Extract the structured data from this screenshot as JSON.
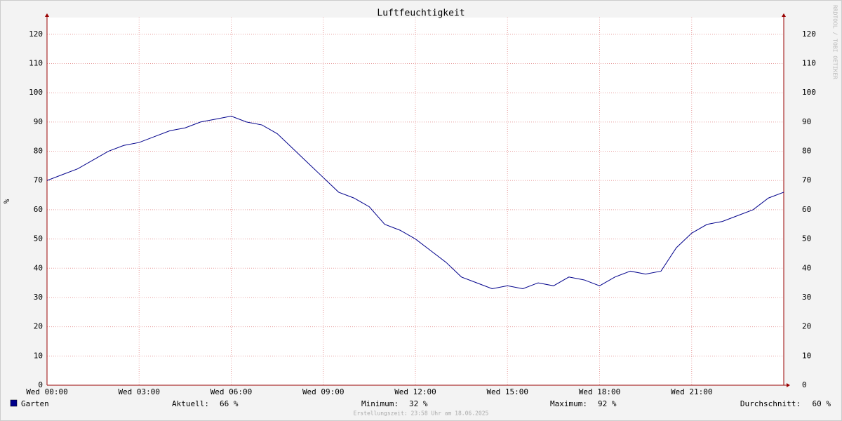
{
  "chart_data": {
    "type": "line",
    "title": "Luftfeuchtigkeit",
    "y_label": "%",
    "watermark": "RRDTOOL / TOBI OETIKER",
    "x": [
      0,
      0.5,
      1,
      1.5,
      2,
      2.5,
      3,
      3.5,
      4,
      4.5,
      5,
      5.5,
      6,
      6.5,
      7,
      7.5,
      8,
      8.5,
      9,
      9.5,
      10,
      10.5,
      11,
      11.5,
      12,
      12.5,
      13,
      13.5,
      14,
      14.5,
      15,
      15.5,
      16,
      16.5,
      17,
      17.5,
      18,
      18.5,
      19,
      19.5,
      20,
      20.5,
      21,
      21.5,
      22,
      22.5,
      23,
      23.5,
      24
    ],
    "series": [
      {
        "name": "Garten",
        "color": "#00008b",
        "values": [
          70,
          72,
          74,
          77,
          80,
          82,
          83,
          85,
          87,
          88,
          90,
          91,
          92,
          90,
          89,
          86,
          81,
          76,
          71,
          66,
          64,
          61,
          55,
          53,
          50,
          46,
          42,
          37,
          35,
          33,
          34,
          33,
          35,
          34,
          37,
          36,
          34,
          37,
          39,
          38,
          39,
          47,
          52,
          55,
          56,
          58,
          60,
          64,
          66
        ]
      }
    ],
    "xlim": [
      0,
      24
    ],
    "xticks": [
      {
        "value": 0,
        "label": "Wed 00:00"
      },
      {
        "value": 3,
        "label": "Wed 03:00"
      },
      {
        "value": 6,
        "label": "Wed 06:00"
      },
      {
        "value": 9,
        "label": "Wed 09:00"
      },
      {
        "value": 12,
        "label": "Wed 12:00"
      },
      {
        "value": 15,
        "label": "Wed 15:00"
      },
      {
        "value": 18,
        "label": "Wed 18:00"
      },
      {
        "value": 21,
        "label": "Wed 21:00"
      }
    ],
    "ylim": [
      0,
      125
    ],
    "yticks": [
      0,
      10,
      20,
      30,
      40,
      50,
      60,
      70,
      80,
      90,
      100,
      110,
      120
    ],
    "grid": true,
    "stats": [
      {
        "label": "Aktuell:",
        "value": "66 %"
      },
      {
        "label": "Minimum:",
        "value": "32 %"
      },
      {
        "label": "Maximum:",
        "value": "92 %"
      },
      {
        "label": "Durchschnitt:",
        "value": "60 %"
      }
    ],
    "footer": "Erstellungszeit: 23:58 Uhr am 18.06.2025"
  }
}
